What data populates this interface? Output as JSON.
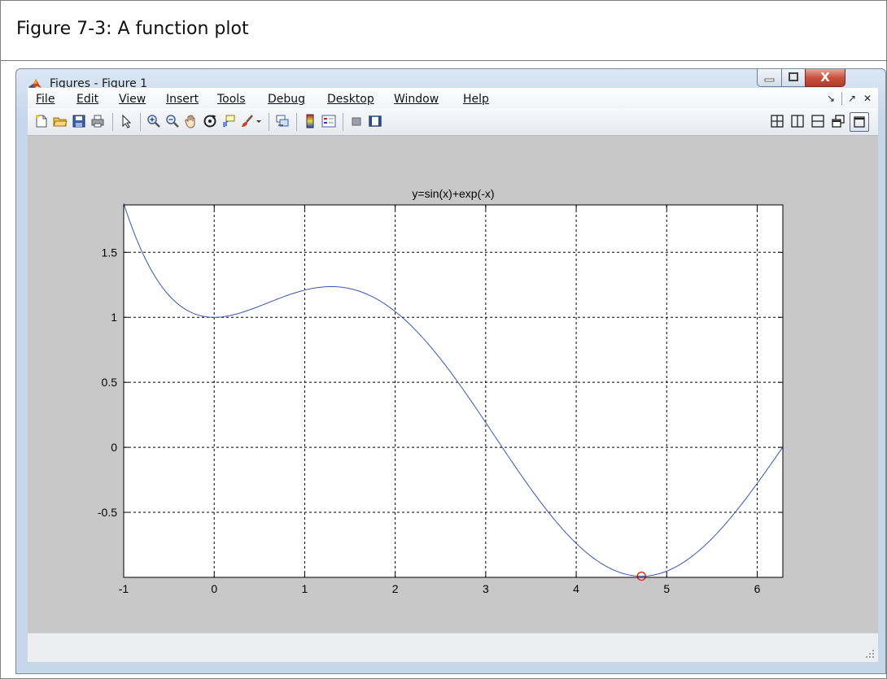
{
  "caption": "Figure 7-3: A function plot",
  "window": {
    "title": "Figures - Figure 1",
    "close_glyph": "X"
  },
  "menu": {
    "items": [
      {
        "name": "file",
        "label": "File"
      },
      {
        "name": "edit",
        "label": "Edit"
      },
      {
        "name": "view",
        "label": "View"
      },
      {
        "name": "insert",
        "label": "Insert"
      },
      {
        "name": "tools",
        "label": "Tools"
      },
      {
        "name": "debug",
        "label": "Debug"
      },
      {
        "name": "desktop",
        "label": "Desktop"
      },
      {
        "name": "window",
        "label": "Window"
      },
      {
        "name": "help",
        "label": "Help"
      }
    ],
    "dock_glyph": "↘",
    "undock_glyph": "↗",
    "close_glyph": "✕"
  },
  "toolbar": {
    "icons": [
      "new-figure-icon",
      "open-file-icon",
      "save-icon",
      "print-icon",
      "pointer-icon",
      "zoom-in-icon",
      "zoom-out-icon",
      "pan-hand-icon",
      "rotate-3d-icon",
      "data-cursor-icon",
      "brush-icon",
      "link-plot-icon",
      "colorbar-icon",
      "legend-icon",
      "hide-plot-tools-icon",
      "show-plot-tools-icon",
      "tile-grid-icon",
      "tile-columns-icon",
      "tile-rows-icon",
      "float-icon",
      "maximize-icon"
    ]
  },
  "colors": {
    "curve": "#3a56b0",
    "marker": "#ff0000",
    "figure_bg": "#c8c8c8"
  },
  "chart_data": {
    "type": "line",
    "title": "y=sin(x)+exp(-x)",
    "xlabel": "",
    "ylabel": "",
    "xlim": [
      -1,
      6.2832
    ],
    "ylim": [
      -1,
      1.8646
    ],
    "grid": true,
    "grid_style": "dashed",
    "xticks": [
      -1,
      0,
      1,
      2,
      3,
      4,
      5,
      6
    ],
    "yticks": [
      -0.5,
      0,
      0.5,
      1,
      1.5
    ],
    "xtick_labels": [
      "-1",
      "0",
      "1",
      "2",
      "3",
      "4",
      "5",
      "6"
    ],
    "ytick_labels": [
      "-0.5",
      "0",
      "0.5",
      "1",
      "1.5"
    ],
    "series": [
      {
        "function": "sin(x)+exp(-x)",
        "x": [
          -1,
          -0.5,
          0,
          0.5,
          1,
          1.3,
          1.5,
          2,
          2.5,
          3,
          3.5,
          4,
          4.5,
          4.72,
          5,
          5.5,
          6,
          6.2832
        ],
        "y": [
          1.8646,
          1.1693,
          1.0,
          1.0859,
          1.2093,
          1.2361,
          1.2206,
          1.0446,
          0.6806,
          0.1909,
          -0.3206,
          -0.7385,
          -0.9664,
          -0.9911,
          -0.9522,
          -0.7015,
          -0.2769,
          0.0019
        ]
      }
    ],
    "marker": {
      "x": 4.7207,
      "y": -0.9911,
      "shape": "circle"
    }
  }
}
